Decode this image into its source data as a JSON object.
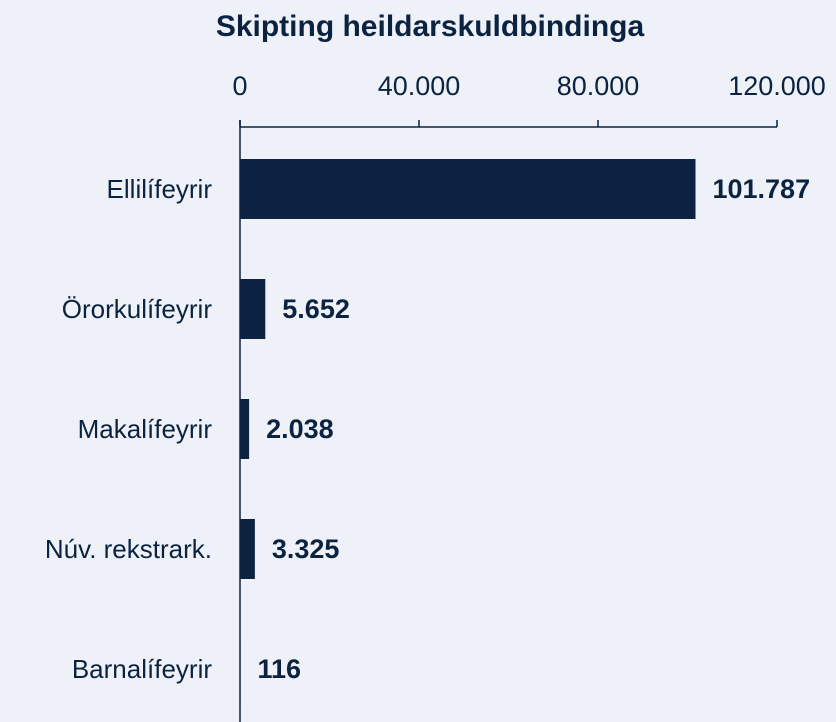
{
  "chart_data": {
    "type": "bar",
    "orientation": "horizontal",
    "title": "Skipting heildarskuldbindinga",
    "categories": [
      "Ellilífeyrir",
      "Örorkulífeyrir",
      "Makalífeyrir",
      "Núv. rekstrark.",
      "Barnalífeyrir"
    ],
    "values": [
      101787,
      5652,
      2038,
      3325,
      116
    ],
    "value_labels": [
      "101.787",
      "5.652",
      "2.038",
      "3.325",
      "116"
    ],
    "color": "#0b2340",
    "xlim": [
      0,
      120000
    ],
    "xticks": [
      0,
      {
        "value": 40000,
        "label": "40.000"
      },
      {
        "value": 80000,
        "label": "80.000"
      },
      {
        "value": 120000,
        "label": "120.000"
      }
    ],
    "grid": false
  }
}
